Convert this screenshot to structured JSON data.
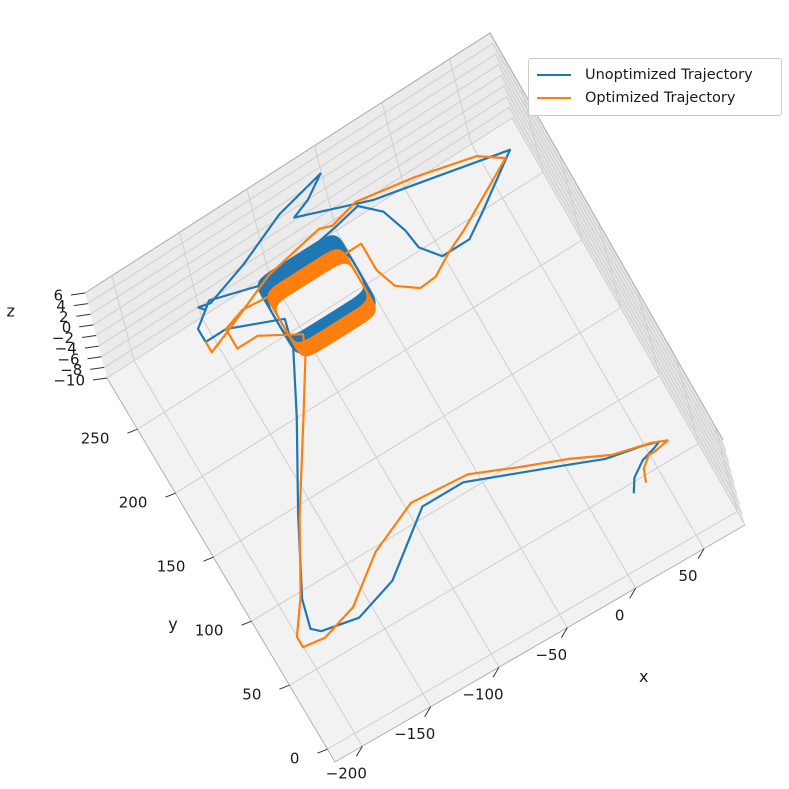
{
  "chart_data": {
    "type": "line",
    "projection": "3d",
    "title": "",
    "xlabel": "x",
    "ylabel": "y",
    "zlabel": "z",
    "x_ticks": [
      -200,
      -150,
      -100,
      -50,
      0,
      50
    ],
    "y_ticks": [
      0,
      50,
      100,
      150,
      200,
      250
    ],
    "z_ticks": [
      6,
      4,
      2,
      0,
      -2,
      -4,
      -6,
      -8,
      -10
    ],
    "x_tick_labels": [
      "−200",
      "−150",
      "−100",
      "−50",
      "0",
      "50"
    ],
    "y_tick_labels": [
      "0",
      "50",
      "100",
      "150",
      "200",
      "250"
    ],
    "z_tick_labels": [
      "6",
      "4",
      "2",
      "0",
      "−2",
      "−4",
      "−6",
      "−8",
      "−10"
    ],
    "xlim": [
      -220,
      80
    ],
    "ylim": [
      -10,
      290
    ],
    "zlim": [
      -10,
      6
    ],
    "grid": true,
    "legend_position": "top-right",
    "series": [
      {
        "name": "Unoptimized Trajectory",
        "color": "#1f77b4",
        "path": [
          [
            20,
            10
          ],
          [
            25,
            18
          ],
          [
            35,
            25
          ],
          [
            45,
            28
          ],
          [
            50,
            30
          ],
          [
            40,
            33
          ],
          [
            15,
            38
          ],
          [
            -10,
            48
          ],
          [
            -40,
            60
          ],
          [
            -70,
            72
          ],
          [
            -100,
            72
          ],
          [
            -115,
            60
          ],
          [
            -140,
            40
          ],
          [
            -170,
            30
          ],
          [
            -195,
            35
          ],
          [
            -200,
            40
          ],
          [
            -195,
            60
          ],
          [
            -170,
            110
          ],
          [
            -140,
            165
          ],
          [
            -120,
            205
          ],
          [
            -115,
            225
          ],
          [
            -150,
            240
          ],
          [
            -165,
            240
          ],
          [
            -165,
            250
          ],
          [
            -150,
            262
          ],
          [
            -110,
            250
          ],
          [
            -60,
            258
          ],
          [
            -40,
            262
          ],
          [
            -28,
            250
          ],
          [
            -22,
            232
          ],
          [
            -20,
            218
          ],
          [
            -10,
            205
          ],
          [
            10,
            205
          ],
          [
            25,
            215
          ],
          [
            60,
            240
          ],
          [
            15,
            250
          ],
          [
            -30,
            260
          ],
          [
            -78,
            278
          ],
          [
            -65,
            283
          ],
          [
            -50,
            293
          ],
          [
            -85,
            285
          ],
          [
            -120,
            270
          ],
          [
            -150,
            260
          ],
          [
            -158,
            262
          ],
          [
            -155,
            258
          ]
        ],
        "coil": {
          "x_range": [
            -120,
            -60
          ],
          "y_range": [
            205,
            250
          ],
          "loops": 12
        }
      },
      {
        "name": "Optimized Trajectory",
        "color": "#ff7f0e",
        "path": [
          [
            30,
            12
          ],
          [
            33,
            20
          ],
          [
            40,
            26
          ],
          [
            45,
            26
          ],
          [
            55,
            28
          ],
          [
            45,
            32
          ],
          [
            20,
            38
          ],
          [
            -5,
            50
          ],
          [
            -35,
            62
          ],
          [
            -65,
            75
          ],
          [
            -105,
            78
          ],
          [
            -140,
            62
          ],
          [
            -170,
            38
          ],
          [
            -195,
            30
          ],
          [
            -210,
            32
          ],
          [
            -210,
            40
          ],
          [
            -195,
            62
          ],
          [
            -170,
            108
          ],
          [
            -135,
            165
          ],
          [
            -115,
            198
          ],
          [
            -110,
            210
          ],
          [
            -135,
            225
          ],
          [
            -150,
            225
          ],
          [
            -150,
            240
          ],
          [
            -135,
            245
          ],
          [
            -85,
            240
          ],
          [
            -50,
            240
          ],
          [
            -50,
            220
          ],
          [
            -45,
            205
          ],
          [
            -32,
            195
          ],
          [
            -20,
            196
          ],
          [
            -5,
            205
          ],
          [
            10,
            212
          ],
          [
            55,
            237
          ],
          [
            40,
            248
          ],
          [
            0,
            258
          ],
          [
            -40,
            265
          ],
          [
            -60,
            260
          ],
          [
            -68,
            263
          ],
          [
            -110,
            255
          ],
          [
            -150,
            238
          ],
          [
            -165,
            232
          ],
          [
            -165,
            240
          ]
        ],
        "coil": {
          "x_range": [
            -118,
            -62
          ],
          "y_range": [
            200,
            242
          ],
          "loops": 14
        }
      }
    ]
  }
}
